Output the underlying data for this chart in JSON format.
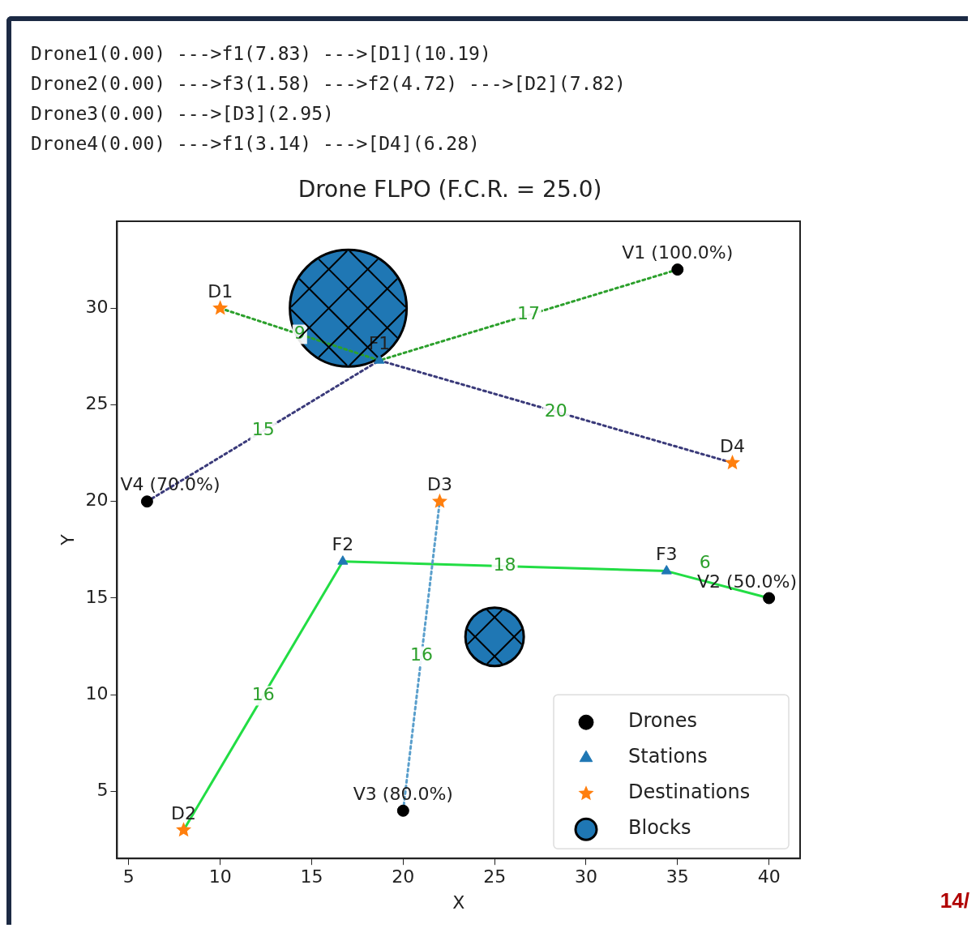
{
  "chart_data": {
    "type": "scatter",
    "title": "Drone FLPO (F.C.R. = 25.0)",
    "subtitle": "Drone1(0.00) --->f1(7.83) --->[D1](10.19)\nDrone2(0.00) --->f3(1.58) --->f2(4.72) --->[D2](7.82)\nDrone3(0.00) --->[D3](2.95)\nDrone4(0.00) --->f1(3.14) --->[D4](6.28)",
    "xlabel": "X",
    "ylabel": "Y",
    "xlim": [
      4.36,
      41.7
    ],
    "ylim": [
      1.53,
      34.5
    ],
    "xticks": [
      5,
      10,
      15,
      20,
      25,
      30,
      35,
      40
    ],
    "yticks": [
      5,
      10,
      15,
      20,
      25,
      30
    ],
    "grid": false,
    "legend": "bottom right",
    "series": [
      {
        "type": "line",
        "color": "#2ca02c",
        "line_style": "dotted",
        "marker": "none",
        "x": [
          35,
          18.7,
          10
        ],
        "values": [
          32,
          27.3,
          30
        ]
      },
      {
        "type": "line",
        "color": "#22dd44",
        "line_style": "solid",
        "marker": "none",
        "x": [
          40,
          34.4,
          16.7,
          8
        ],
        "values": [
          15,
          16.4,
          16.9,
          3
        ]
      },
      {
        "type": "line",
        "color": "#5a9fcc",
        "line_style": "dotted",
        "marker": "none",
        "x": [
          20,
          22
        ],
        "values": [
          4,
          20
        ]
      },
      {
        "type": "line",
        "color": "#3a3a7a",
        "line_style": "dotted",
        "marker": "none",
        "x": [
          6,
          18.7,
          38
        ],
        "values": [
          20,
          27.3,
          22
        ]
      },
      {
        "name": "Drones",
        "color": "#000000",
        "marker": "circle",
        "x": [
          35,
          40,
          20,
          6
        ],
        "values": [
          32,
          15,
          4,
          20
        ]
      },
      {
        "name": "Stations",
        "color": "#1f77b4",
        "marker": "triangle",
        "x": [
          18.7,
          16.7,
          34.4
        ],
        "values": [
          27.3,
          16.9,
          16.4
        ]
      },
      {
        "name": "Destinations",
        "color": "#ff7f0e",
        "marker": "star",
        "x": [
          10,
          8,
          22,
          38
        ],
        "values": [
          30,
          3,
          20,
          22
        ]
      },
      {
        "type": "bubble",
        "name": "Blocks",
        "color": "#1f77b4",
        "x": [
          17,
          25
        ],
        "values": [
          30,
          13
        ],
        "sizes": [
          1,
          0.25
        ]
      }
    ],
    "annotations": [
      "14/",
      {
        "text": "V1 (100.0%)",
        "x": 35,
        "y": 32
      },
      {
        "text": "V2 (50.0%)",
        "x": 40,
        "y": 15
      },
      {
        "text": "V3 (80.0%)",
        "x": 20,
        "y": 4
      },
      {
        "text": "V4 (70.0%)",
        "x": 6,
        "y": 20
      },
      {
        "text": "F1",
        "x": 18.7,
        "y": 27.3
      },
      {
        "text": "F2",
        "x": 16.7,
        "y": 16.9
      },
      {
        "text": "F3",
        "x": 34.4,
        "y": 16.4
      },
      {
        "text": "D1",
        "x": 10,
        "y": 30
      },
      {
        "text": "D2",
        "x": 8,
        "y": 3
      },
      {
        "text": "D3",
        "x": 22,
        "y": 20
      },
      {
        "text": "D4",
        "x": 38,
        "y": 22
      },
      {
        "text": "17",
        "x": 26.85,
        "y": 29.65
      },
      {
        "text": "9",
        "x": 14.35,
        "y": 28.65
      },
      {
        "text": "6",
        "x": 36.5,
        "y": 16.8
      },
      {
        "text": "18",
        "x": 25.55,
        "y": 16.65
      },
      {
        "text": "16",
        "x": 12.35,
        "y": 9.95
      },
      {
        "text": "16",
        "x": 21,
        "y": 12
      },
      {
        "text": "15",
        "x": 12.35,
        "y": 23.65
      },
      {
        "text": "20",
        "x": 28.35,
        "y": 24.65
      }
    ]
  }
}
